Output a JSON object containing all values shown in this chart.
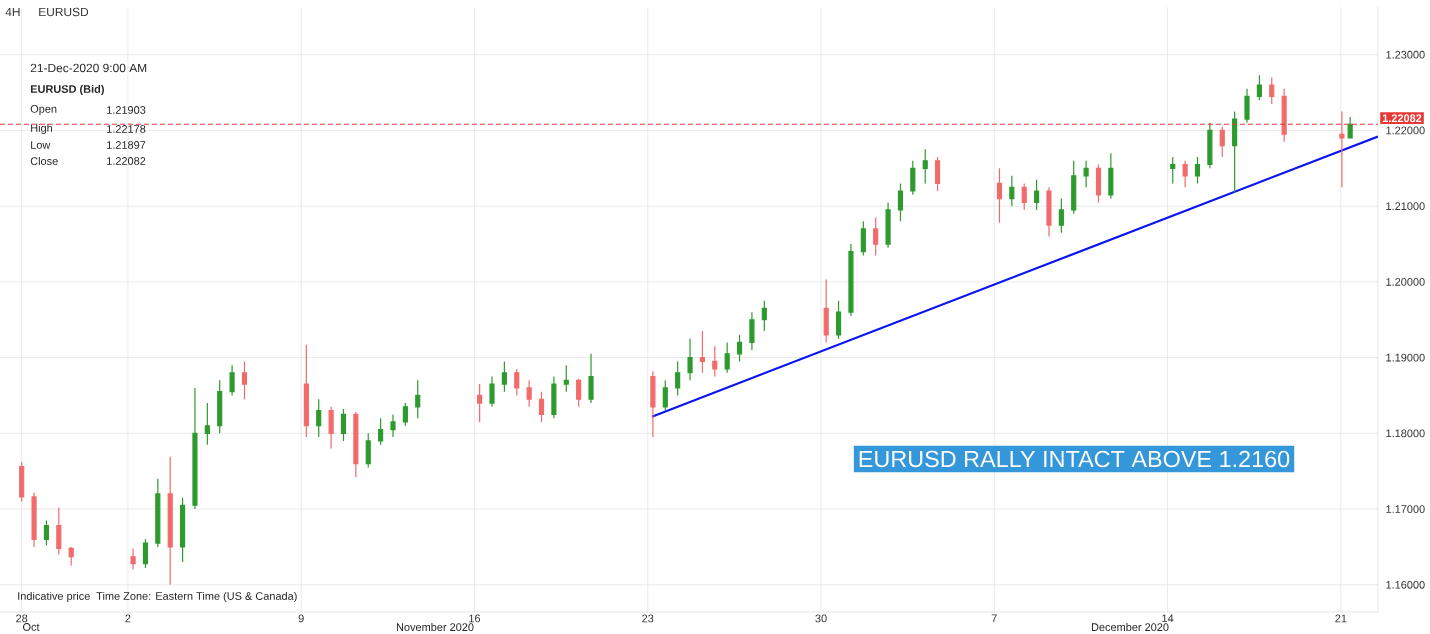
{
  "chart_data": {
    "type": "candlestick",
    "title": "4H",
    "subtitle": "EURUSD",
    "x": [
      "2020-10-28T17:00",
      "2020-10-29T05:00",
      "2020-10-29T17:00",
      "2020-10-30T05:00",
      "2020-10-30T17:00",
      "2020-11-02T05:00",
      "2020-11-02T17:00",
      "2020-11-03T05:00",
      "2020-11-03T17:00",
      "2020-11-04T05:00",
      "2020-11-04T17:00",
      "2020-11-05T05:00",
      "2020-11-05T17:00",
      "2020-11-06T05:00",
      "2020-11-06T17:00",
      "2020-11-09T05:00",
      "2020-11-09T17:00",
      "2020-11-10T05:00",
      "2020-11-10T17:00",
      "2020-11-11T05:00",
      "2020-11-11T17:00",
      "2020-11-12T05:00",
      "2020-11-12T17:00",
      "2020-11-13T05:00",
      "2020-11-13T17:00",
      "2020-11-16T05:00",
      "2020-11-16T17:00",
      "2020-11-17T05:00",
      "2020-11-17T17:00",
      "2020-11-18T05:00",
      "2020-11-18T17:00",
      "2020-11-19T05:00",
      "2020-11-19T17:00",
      "2020-11-20T05:00",
      "2020-11-20T17:00",
      "2020-11-23T05:00",
      "2020-11-23T17:00",
      "2020-11-24T05:00",
      "2020-11-24T17:00",
      "2020-11-25T05:00",
      "2020-11-25T17:00",
      "2020-11-26T05:00",
      "2020-11-26T17:00",
      "2020-11-27T05:00",
      "2020-11-27T17:00",
      "2020-11-30T05:00",
      "2020-11-30T17:00",
      "2020-12-01T05:00",
      "2020-12-01T17:00",
      "2020-12-02T05:00",
      "2020-12-02T17:00",
      "2020-12-03T05:00",
      "2020-12-03T17:00",
      "2020-12-04T05:00",
      "2020-12-04T17:00",
      "2020-12-07T05:00",
      "2020-12-07T17:00",
      "2020-12-08T05:00",
      "2020-12-08T17:00",
      "2020-12-09T05:00",
      "2020-12-09T17:00",
      "2020-12-10T05:00",
      "2020-12-10T17:00",
      "2020-12-11T05:00",
      "2020-12-11T17:00",
      "2020-12-14T05:00",
      "2020-12-14T17:00",
      "2020-12-15T05:00",
      "2020-12-15T17:00",
      "2020-12-16T05:00",
      "2020-12-16T17:00",
      "2020-12-17T05:00",
      "2020-12-17T17:00",
      "2020-12-18T05:00",
      "2020-12-18T17:00",
      "2020-12-21T01:00",
      "2020-12-21T09:00"
    ],
    "ohlc": [
      [
        1.1756,
        1.1762,
        1.171,
        1.1716
      ],
      [
        1.1716,
        1.1722,
        1.165,
        1.166
      ],
      [
        1.166,
        1.1685,
        1.1652,
        1.1678
      ],
      [
        1.1678,
        1.1702,
        1.164,
        1.1648
      ],
      [
        1.1648,
        1.165,
        1.1625,
        1.1637
      ],
      [
        1.1637,
        1.1648,
        1.162,
        1.1628
      ],
      [
        1.1628,
        1.166,
        1.1622,
        1.1655
      ],
      [
        1.1655,
        1.174,
        1.165,
        1.172
      ],
      [
        1.172,
        1.1769,
        1.16,
        1.165
      ],
      [
        1.165,
        1.1715,
        1.163,
        1.1705
      ],
      [
        1.1705,
        1.186,
        1.17,
        1.18
      ],
      [
        1.18,
        1.184,
        1.1785,
        1.181
      ],
      [
        1.181,
        1.187,
        1.18,
        1.1855
      ],
      [
        1.1855,
        1.189,
        1.185,
        1.188
      ],
      [
        1.188,
        1.1895,
        1.1845,
        1.1865
      ],
      [
        1.1865,
        1.1917,
        1.1795,
        1.181
      ],
      [
        1.181,
        1.1845,
        1.1795,
        1.183
      ],
      [
        1.183,
        1.1835,
        1.178,
        1.18
      ],
      [
        1.18,
        1.1832,
        1.179,
        1.1825
      ],
      [
        1.1825,
        1.1828,
        1.1742,
        1.176
      ],
      [
        1.176,
        1.18,
        1.1755,
        1.179
      ],
      [
        1.179,
        1.182,
        1.1785,
        1.1805
      ],
      [
        1.1805,
        1.1825,
        1.1795,
        1.1815
      ],
      [
        1.1815,
        1.184,
        1.181,
        1.1835
      ],
      [
        1.1835,
        1.187,
        1.182,
        1.185
      ],
      [
        1.185,
        1.1865,
        1.1815,
        1.184
      ],
      [
        1.184,
        1.1875,
        1.1835,
        1.1865
      ],
      [
        1.1865,
        1.1895,
        1.1855,
        1.188
      ],
      [
        1.188,
        1.1885,
        1.185,
        1.186
      ],
      [
        1.186,
        1.187,
        1.1835,
        1.1845
      ],
      [
        1.1845,
        1.1855,
        1.1815,
        1.1825
      ],
      [
        1.1825,
        1.1875,
        1.182,
        1.1865
      ],
      [
        1.1865,
        1.189,
        1.1855,
        1.187
      ],
      [
        1.187,
        1.1872,
        1.1835,
        1.1845
      ],
      [
        1.1845,
        1.1905,
        1.184,
        1.1875
      ],
      [
        1.1875,
        1.1882,
        1.1795,
        1.1835
      ],
      [
        1.1835,
        1.187,
        1.183,
        1.186
      ],
      [
        1.186,
        1.1895,
        1.185,
        1.188
      ],
      [
        1.188,
        1.1925,
        1.187,
        1.19
      ],
      [
        1.19,
        1.1935,
        1.188,
        1.1895
      ],
      [
        1.1895,
        1.1915,
        1.1875,
        1.1885
      ],
      [
        1.1885,
        1.192,
        1.188,
        1.1905
      ],
      [
        1.1905,
        1.193,
        1.1895,
        1.192
      ],
      [
        1.192,
        1.196,
        1.191,
        1.195
      ],
      [
        1.195,
        1.1975,
        1.1935,
        1.1965
      ],
      [
        1.1965,
        1.2003,
        1.192,
        1.193
      ],
      [
        1.193,
        1.1975,
        1.1925,
        1.196
      ],
      [
        1.196,
        1.205,
        1.1955,
        1.204
      ],
      [
        1.204,
        1.208,
        1.2035,
        1.207
      ],
      [
        1.207,
        1.2085,
        1.2035,
        1.205
      ],
      [
        1.205,
        1.2105,
        1.2045,
        1.2095
      ],
      [
        1.2095,
        1.213,
        1.208,
        1.212
      ],
      [
        1.212,
        1.216,
        1.2115,
        1.215
      ],
      [
        1.215,
        1.2175,
        1.213,
        1.216
      ],
      [
        1.216,
        1.2165,
        1.212,
        1.213
      ],
      [
        1.213,
        1.215,
        1.2078,
        1.211
      ],
      [
        1.211,
        1.214,
        1.21,
        1.2125
      ],
      [
        1.2125,
        1.213,
        1.2095,
        1.2105
      ],
      [
        1.2105,
        1.2135,
        1.2095,
        1.212
      ],
      [
        1.212,
        1.2125,
        1.206,
        1.2075
      ],
      [
        1.2075,
        1.211,
        1.2065,
        1.2095
      ],
      [
        1.2095,
        1.216,
        1.209,
        1.214
      ],
      [
        1.214,
        1.216,
        1.2125,
        1.215
      ],
      [
        1.215,
        1.2155,
        1.2105,
        1.2115
      ],
      [
        1.2115,
        1.217,
        1.211,
        1.215
      ],
      [
        1.215,
        1.2165,
        1.213,
        1.2155
      ],
      [
        1.2155,
        1.216,
        1.2125,
        1.214
      ],
      [
        1.214,
        1.2165,
        1.213,
        1.2155
      ],
      [
        1.2155,
        1.221,
        1.215,
        1.22
      ],
      [
        1.22,
        1.2205,
        1.2165,
        1.218
      ],
      [
        1.218,
        1.2225,
        1.2118,
        1.2215
      ],
      [
        1.2215,
        1.2255,
        1.221,
        1.2245
      ],
      [
        1.2245,
        1.2273,
        1.224,
        1.226
      ],
      [
        1.226,
        1.227,
        1.2235,
        1.2245
      ],
      [
        1.2245,
        1.2255,
        1.2185,
        1.2195
      ],
      [
        1.2195,
        1.2225,
        1.2125,
        1.219
      ],
      [
        1.21903,
        1.22178,
        1.21897,
        1.22082
      ]
    ],
    "colors": [
      "#f26b6b",
      "#f26b6b",
      "#2e9a2e",
      "#f26b6b",
      "#f26b6b",
      "#f26b6b",
      "#2e9a2e",
      "#2e9a2e",
      "#f26b6b",
      "#2e9a2e",
      "#2e9a2e",
      "#2e9a2e",
      "#2e9a2e",
      "#2e9a2e",
      "#f26b6b",
      "#f26b6b",
      "#2e9a2e",
      "#f26b6b",
      "#2e9a2e",
      "#f26b6b",
      "#2e9a2e",
      "#2e9a2e",
      "#2e9a2e",
      "#2e9a2e",
      "#2e9a2e",
      "#f26b6b",
      "#2e9a2e",
      "#2e9a2e",
      "#f26b6b",
      "#f26b6b",
      "#f26b6b",
      "#2e9a2e",
      "#2e9a2e",
      "#f26b6b",
      "#2e9a2e",
      "#f26b6b",
      "#2e9a2e",
      "#2e9a2e",
      "#2e9a2e",
      "#f26b6b",
      "#f26b6b",
      "#2e9a2e",
      "#2e9a2e",
      "#2e9a2e",
      "#2e9a2e",
      "#f26b6b",
      "#2e9a2e",
      "#2e9a2e",
      "#2e9a2e",
      "#f26b6b",
      "#2e9a2e",
      "#2e9a2e",
      "#2e9a2e",
      "#2e9a2e",
      "#f26b6b",
      "#f26b6b",
      "#2e9a2e",
      "#f26b6b",
      "#2e9a2e",
      "#f26b6b",
      "#2e9a2e",
      "#2e9a2e",
      "#2e9a2e",
      "#f26b6b",
      "#2e9a2e",
      "#2e9a2e",
      "#f26b6b",
      "#2e9a2e",
      "#2e9a2e",
      "#f26b6b",
      "#2e9a2e",
      "#2e9a2e",
      "#2e9a2e",
      "#f26b6b",
      "#f26b6b",
      "#f26b6b",
      "#2e9a2e"
    ],
    "series": [
      {
        "type": "line",
        "x": [
          "2020-11-23T04:00",
          "2020-12-22T12:00"
        ],
        "values": [
          1.1822,
          1.2192
        ],
        "color": "#0a14f0"
      }
    ],
    "xlim": [
      "2020-10-27T20:00",
      "2020-12-22T12:00"
    ],
    "xticks": [
      {
        "value": "2020-10-28T17:00",
        "label": "28"
      },
      {
        "value": "2020-11-02",
        "label": "2"
      },
      {
        "value": "2020-11-09",
        "label": "9"
      },
      {
        "value": "2020-11-16",
        "label": "16"
      },
      {
        "value": "2020-11-23",
        "label": "23"
      },
      {
        "value": "2020-11-30",
        "label": "30"
      },
      {
        "value": "2020-12-07",
        "label": "7"
      },
      {
        "value": "2020-12-14",
        "label": "14"
      },
      {
        "value": "2020-12-21",
        "label": "21"
      }
    ],
    "ylim": [
      1.1564,
      1.2363
    ],
    "yticks": [
      {
        "value": 1.16,
        "label": "1.16000"
      },
      {
        "value": 1.17,
        "label": "1.17000"
      },
      {
        "value": 1.18,
        "label": "1.18000"
      },
      {
        "value": 1.19,
        "label": "1.19000"
      },
      {
        "value": 1.2,
        "label": "1.20000"
      },
      {
        "value": 1.21,
        "label": "1.21000"
      },
      {
        "value": 1.22,
        "label": "1.22000"
      },
      {
        "value": 1.23,
        "label": "1.23000"
      }
    ],
    "ref_lines": [
      {
        "axis": "y",
        "value": 1.22082,
        "label": "1.22082",
        "color": "#e53935",
        "line_style": "dashed"
      }
    ],
    "grid": true,
    "annotations": [
      "21-Dec-2020 9:00 AM",
      "EURUSD (Bid)",
      "Open",
      "1.21903",
      "High",
      "1.22178",
      "Low",
      "1.21897",
      "Close",
      "1.22082",
      "EURUSD RALLY INTACT ABOVE 1.2160",
      "Indicative price",
      "Time Zone: Eastern Time (US & Canada)",
      "Oct",
      "November 2020",
      "December 2020"
    ]
  }
}
